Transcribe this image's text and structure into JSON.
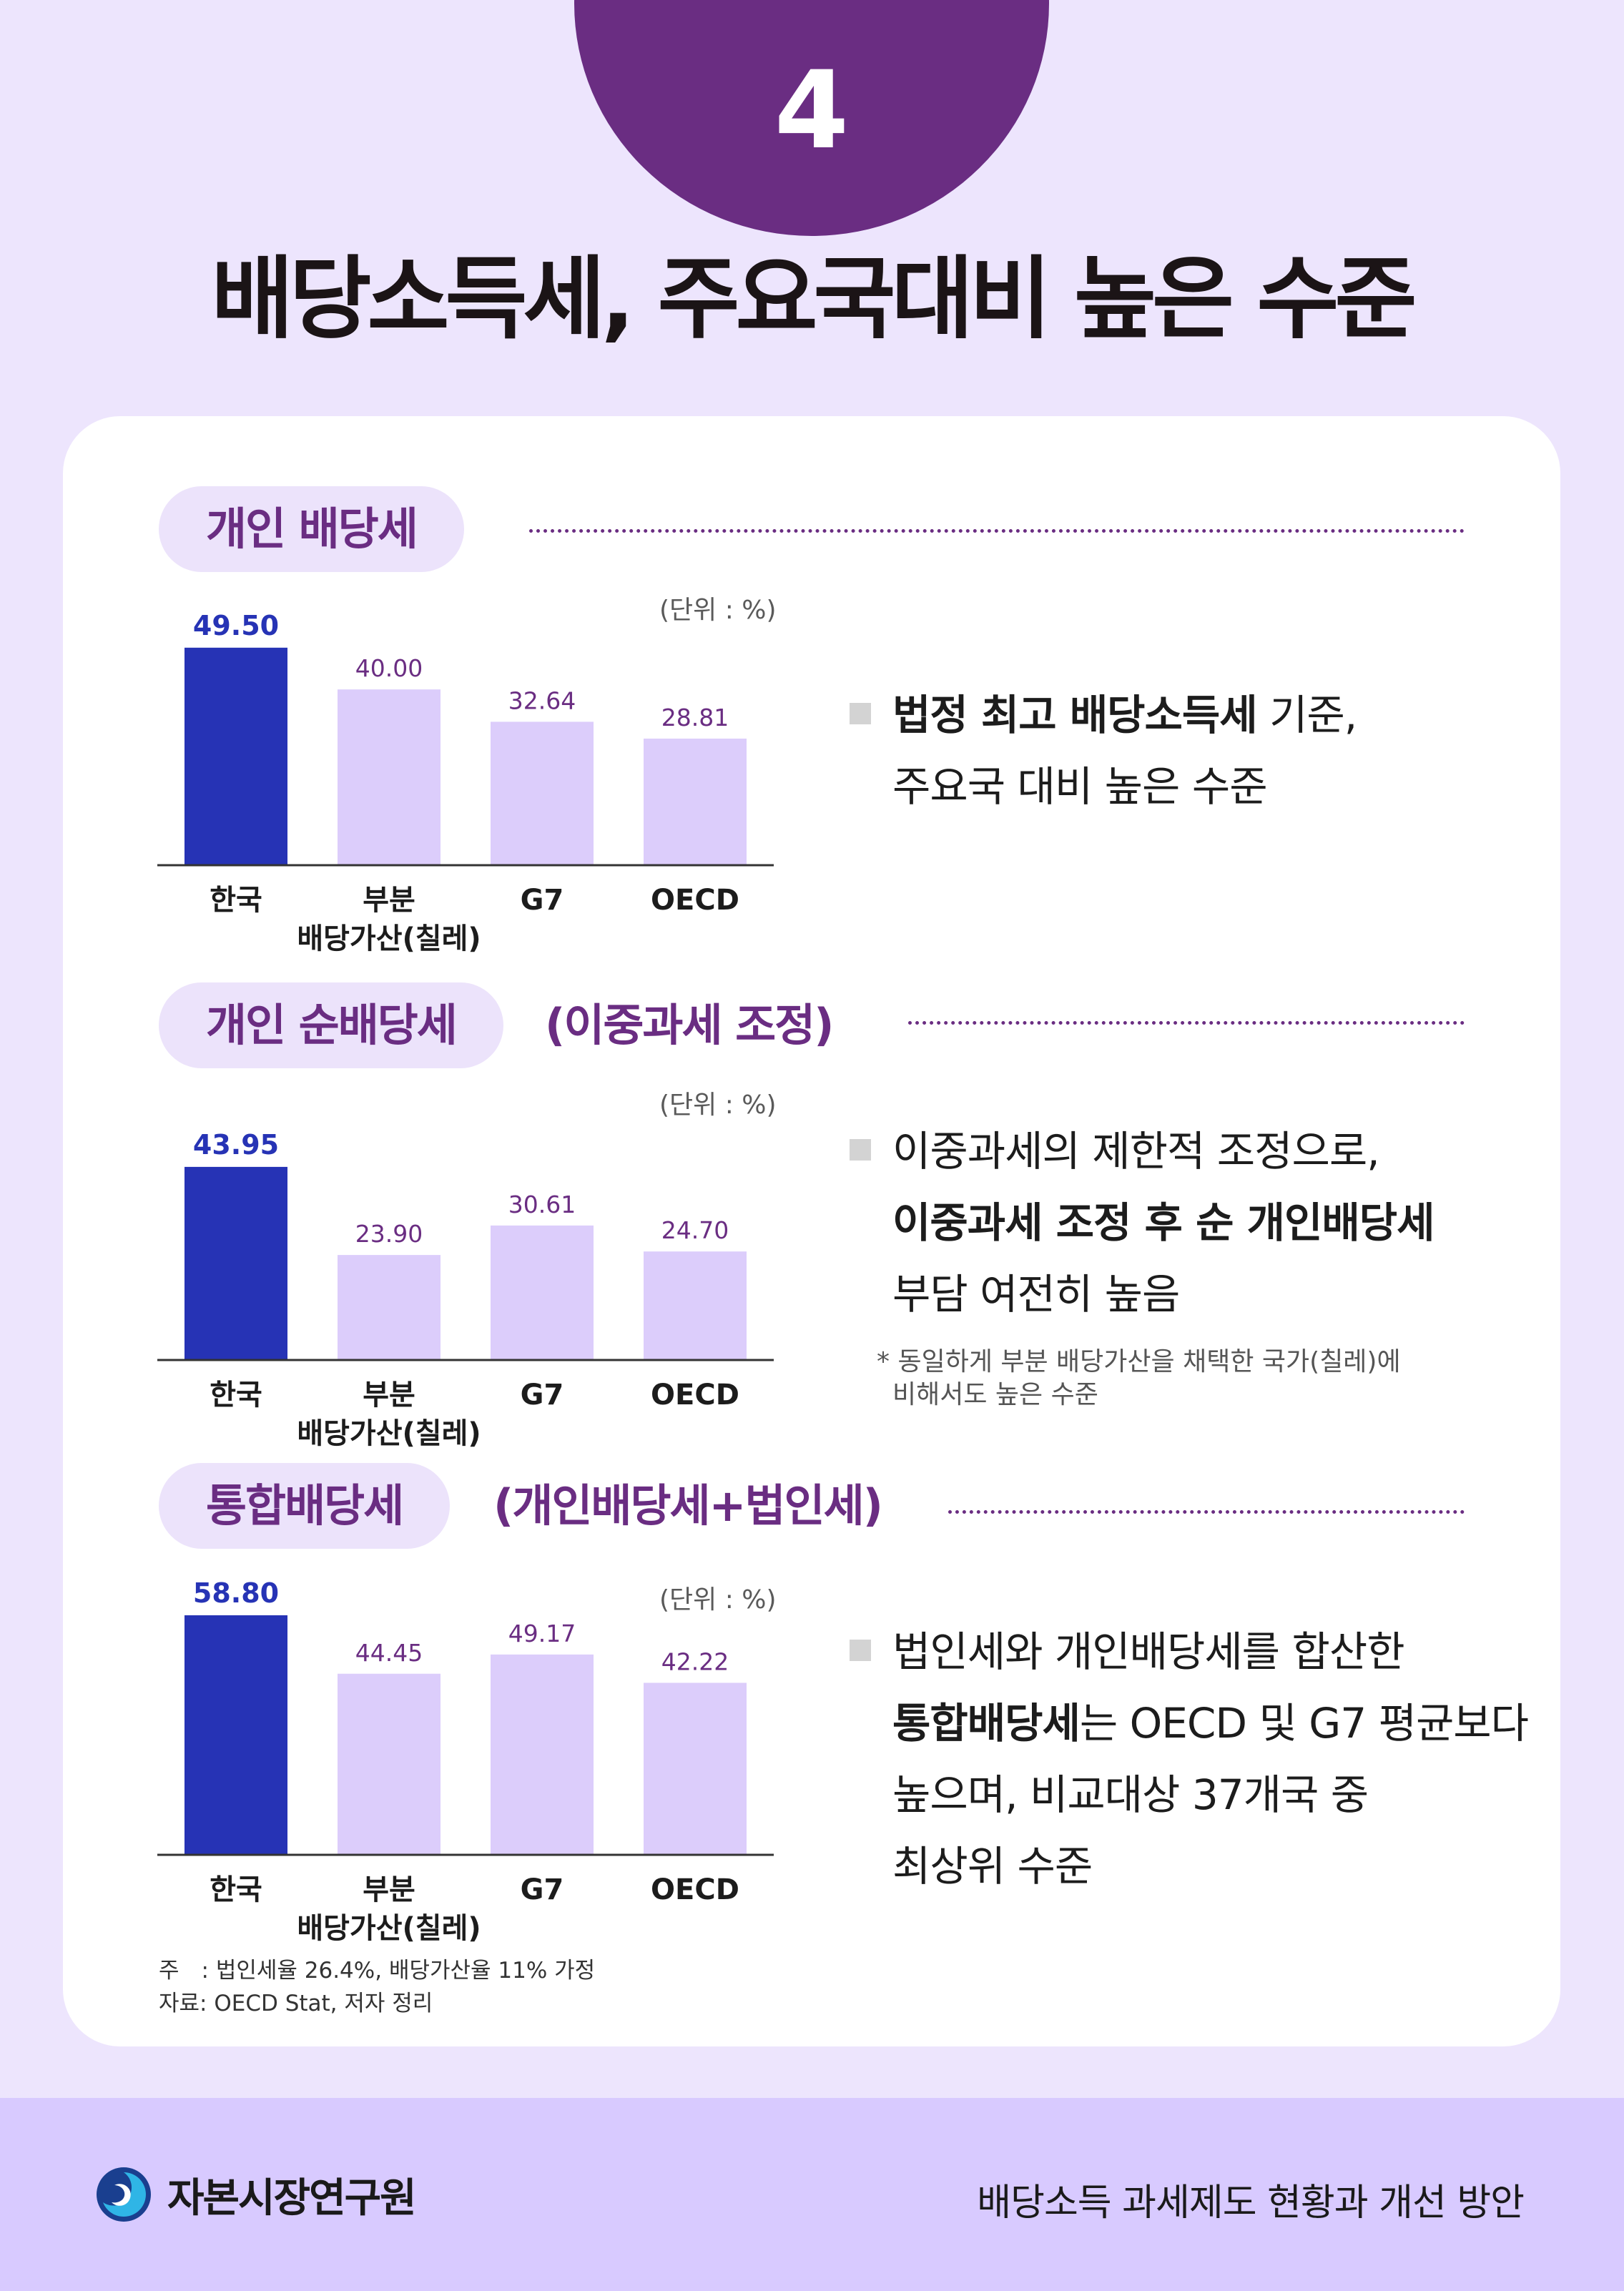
{
  "page_number": "4",
  "title": "배당소득세, 주요국대비 높은 수준",
  "unit_label": "(단위 : %)",
  "colors": {
    "highlight_bar": "#2633b5",
    "other_bar": "#dccdfb",
    "accent": "#6a2d82"
  },
  "sections": [
    {
      "pill": "개인 배당세",
      "pill_extra": "",
      "desc": {
        "line1_bold": "법정 최고 배당소득세",
        "line1_rest": " 기준,",
        "line2": "주요국 대비 높은 수준"
      }
    },
    {
      "pill": "개인 순배당세",
      "pill_extra": "(이중과세 조정)",
      "desc": {
        "line1": "이중과세의 제한적 조정으로,",
        "line2_bold": "이중과세 조정 후 순 개인배당세",
        "line3": "부담 여전히 높음",
        "note_line1": "동일하게 부분 배당가산을 채택한 국가(칠레)에",
        "note_line2": "비해서도 높은 수준"
      }
    },
    {
      "pill": "통합배당세",
      "pill_extra": "(개인배당세+법인세)",
      "desc": {
        "line1": "법인세와 개인배당세를 합산한",
        "line2_bold": "통합배당세",
        "line2_rest": "는 OECD 및 G7 평균보다",
        "line3": "높으며, 비교대상 37개국 중",
        "line4": "최상위 수준"
      }
    }
  ],
  "chart_data": [
    {
      "type": "bar",
      "categories": [
        "한국",
        "부분\n배당가산(칠레)",
        "G7",
        "OECD"
      ],
      "values": [
        49.5,
        40.0,
        32.64,
        28.81
      ],
      "value_labels": [
        "49.50",
        "40.00",
        "32.64",
        "28.81"
      ],
      "highlight_index": 0,
      "ylim": [
        0,
        55
      ],
      "grid": false
    },
    {
      "type": "bar",
      "categories": [
        "한국",
        "부분\n배당가산(칠레)",
        "G7",
        "OECD"
      ],
      "values": [
        43.95,
        23.9,
        30.61,
        24.7
      ],
      "value_labels": [
        "43.95",
        "23.90",
        "30.61",
        "24.70"
      ],
      "highlight_index": 0,
      "ylim": [
        0,
        55
      ],
      "grid": false
    },
    {
      "type": "bar",
      "categories": [
        "한국",
        "부분\n배당가산(칠레)",
        "G7",
        "OECD"
      ],
      "values": [
        58.8,
        44.45,
        49.17,
        42.22
      ],
      "value_labels": [
        "58.80",
        "44.45",
        "49.17",
        "42.22"
      ],
      "highlight_index": 0,
      "ylim": [
        0,
        55
      ],
      "grid": false
    }
  ],
  "footnote": {
    "note": "주　: 법인세율 26.4%, 배당가산율 11% 가정",
    "source": "자료: OECD Stat, 저자 정리"
  },
  "footer": {
    "org_name": "자본시장연구원",
    "report_title": "배당소득 과세제도 현황과 개선 방안",
    "logo_icon": "kcmi-logo-icon"
  }
}
